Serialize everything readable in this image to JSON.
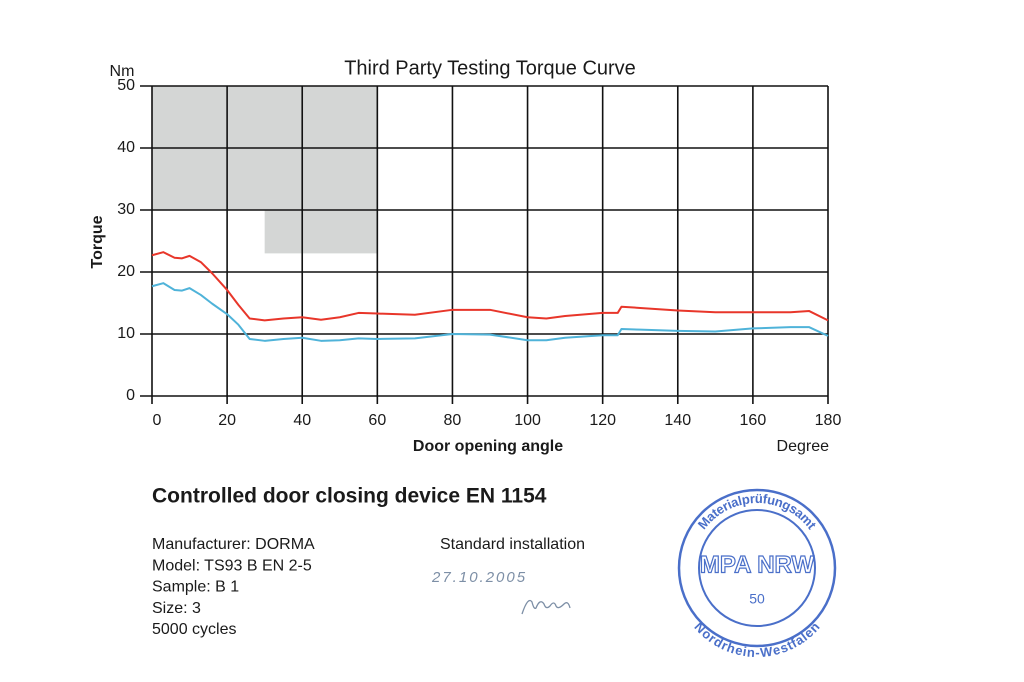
{
  "chart_data": {
    "type": "line",
    "title": "Third Party Testing Torque Curve",
    "y_unit": "Nm",
    "y_label": "Torque",
    "x_label": "Door opening angle",
    "x_unit": "Degree",
    "x": [
      0,
      3,
      6,
      8,
      10,
      13,
      16,
      20,
      23,
      26,
      30,
      35,
      40,
      45,
      50,
      55,
      60,
      70,
      80,
      90,
      100,
      105,
      110,
      120,
      124,
      125,
      130,
      140,
      150,
      160,
      170,
      175,
      180
    ],
    "series": [
      {
        "color": "#e8362a",
        "values": [
          22.7,
          23.2,
          22.3,
          22.2,
          22.6,
          21.6,
          19.8,
          17.1,
          14.7,
          12.5,
          12.2,
          12.5,
          12.7,
          12.3,
          12.7,
          13.4,
          13.3,
          13.1,
          13.9,
          13.9,
          12.7,
          12.5,
          12.9,
          13.4,
          13.4,
          14.4,
          14.2,
          13.8,
          13.5,
          13.5,
          13.5,
          13.7,
          12.2
        ]
      },
      {
        "color": "#4fb3d9",
        "values": [
          17.7,
          18.2,
          17.1,
          17.0,
          17.4,
          16.3,
          14.9,
          13.2,
          11.5,
          9.2,
          8.9,
          9.2,
          9.4,
          8.9,
          9.0,
          9.3,
          9.2,
          9.3,
          10.0,
          9.9,
          9.0,
          9.0,
          9.4,
          9.8,
          9.8,
          10.8,
          10.7,
          10.5,
          10.4,
          10.9,
          11.1,
          11.1,
          9.7
        ]
      }
    ],
    "shaded_region": {
      "color": "#d4d6d5",
      "x": [
        0,
        60,
        60,
        30,
        30,
        0
      ],
      "y": [
        50,
        50,
        23,
        23,
        30,
        30
      ]
    },
    "xlim": [
      0,
      180
    ],
    "ylim": [
      0,
      50
    ],
    "xticks": [
      0,
      20,
      40,
      60,
      80,
      100,
      120,
      140,
      160,
      180
    ],
    "yticks": [
      0,
      10,
      20,
      30,
      40,
      50
    ],
    "grid": true
  },
  "document": {
    "heading": "Controlled door closing device EN 1154",
    "details": [
      "Manufacturer: DORMA",
      "Model: TS93 B EN 2-5",
      "Sample: B 1",
      "Size: 3",
      "5000 cycles"
    ],
    "installation": "Standard installation",
    "date": "27.10.2005",
    "stamp": {
      "top": "Materialprüfungsamt",
      "center": "MPA NRW",
      "number": "50",
      "bottom": "Nordrhein-Westfalen"
    }
  }
}
